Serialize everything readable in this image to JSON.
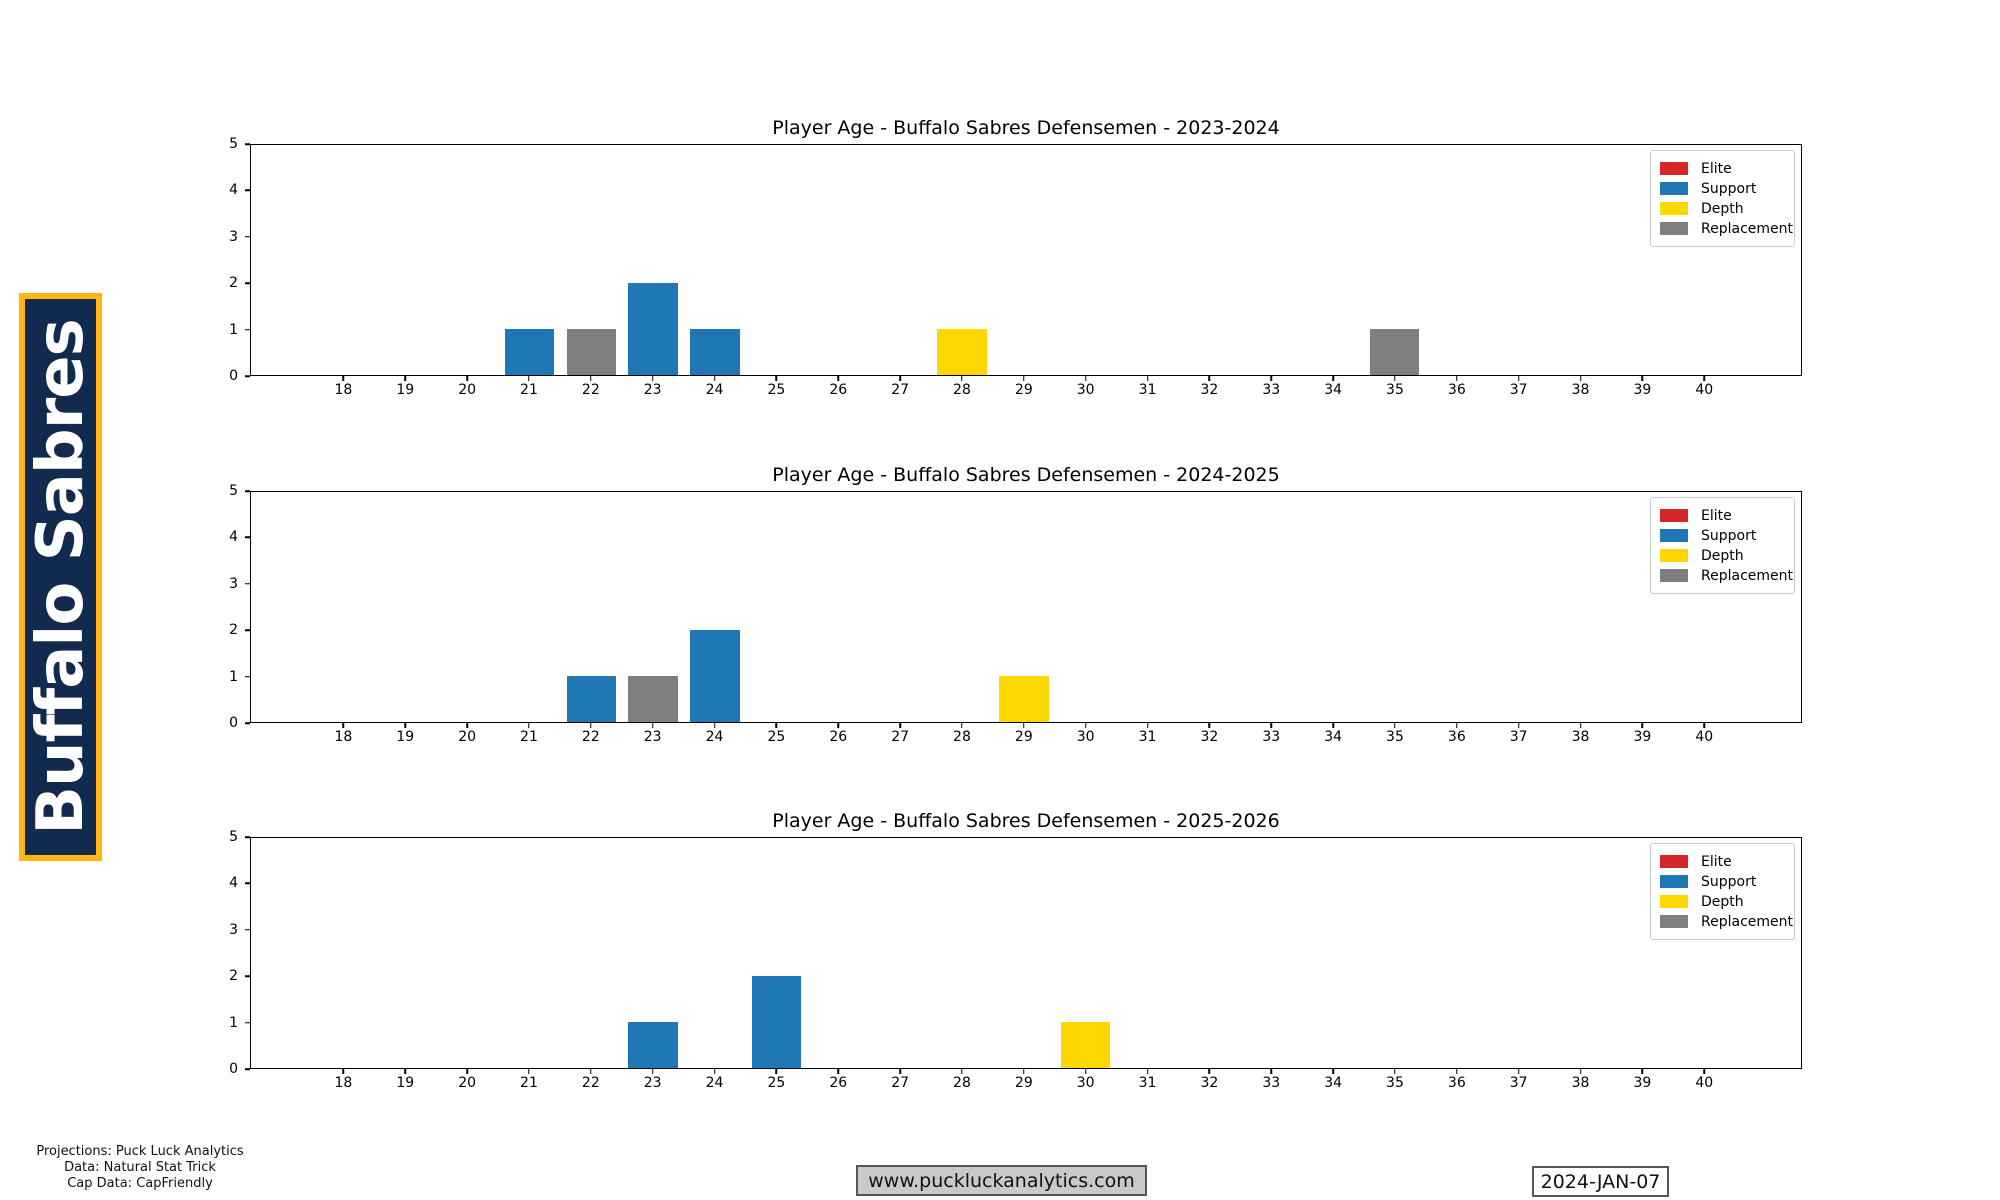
{
  "banner": {
    "team_name": "Buffalo Sabres",
    "background_color": "#122a4d",
    "border_color": "#ffb612",
    "text_color": "#ffffff"
  },
  "tier_colors": {
    "Elite": "#d62728",
    "Support": "#1f77b4",
    "Depth": "#ffd700",
    "Replacement": "#7f7f7f"
  },
  "legend": {
    "position": "upper right",
    "entries": [
      {
        "label": "Elite",
        "color": "#d62728"
      },
      {
        "label": "Support",
        "color": "#1f77b4"
      },
      {
        "label": "Depth",
        "color": "#ffd700"
      },
      {
        "label": "Replacement",
        "color": "#7f7f7f"
      }
    ]
  },
  "chart_data": [
    {
      "type": "bar",
      "title": "Player Age - Buffalo Sabres Defensemen - 2023-2024",
      "season": "2023-2024",
      "xlabel": "",
      "ylabel": "",
      "x_ticks": [
        18,
        19,
        20,
        21,
        22,
        23,
        24,
        25,
        26,
        27,
        28,
        29,
        30,
        31,
        32,
        33,
        34,
        35,
        36,
        37,
        38,
        39,
        40
      ],
      "y_ticks": [
        0,
        1,
        2,
        3,
        4,
        5
      ],
      "xlim": [
        16.49,
        41.58
      ],
      "ylim": [
        0,
        5
      ],
      "bar_width": 0.8,
      "grid": false,
      "bars": [
        {
          "age": 21,
          "count": 1,
          "tier": "Support"
        },
        {
          "age": 22,
          "count": 1,
          "tier": "Replacement"
        },
        {
          "age": 23,
          "count": 2,
          "tier": "Support"
        },
        {
          "age": 24,
          "count": 1,
          "tier": "Support"
        },
        {
          "age": 28,
          "count": 1,
          "tier": "Depth"
        },
        {
          "age": 35,
          "count": 1,
          "tier": "Replacement"
        }
      ]
    },
    {
      "type": "bar",
      "title": "Player Age - Buffalo Sabres Defensemen - 2024-2025",
      "season": "2024-2025",
      "xlabel": "",
      "ylabel": "",
      "x_ticks": [
        18,
        19,
        20,
        21,
        22,
        23,
        24,
        25,
        26,
        27,
        28,
        29,
        30,
        31,
        32,
        33,
        34,
        35,
        36,
        37,
        38,
        39,
        40
      ],
      "y_ticks": [
        0,
        1,
        2,
        3,
        4,
        5
      ],
      "xlim": [
        16.49,
        41.58
      ],
      "ylim": [
        0,
        5
      ],
      "bar_width": 0.8,
      "grid": false,
      "bars": [
        {
          "age": 22,
          "count": 1,
          "tier": "Support"
        },
        {
          "age": 23,
          "count": 1,
          "tier": "Replacement"
        },
        {
          "age": 24,
          "count": 2,
          "tier": "Support"
        },
        {
          "age": 29,
          "count": 1,
          "tier": "Depth"
        }
      ]
    },
    {
      "type": "bar",
      "title": "Player Age - Buffalo Sabres Defensemen - 2025-2026",
      "season": "2025-2026",
      "xlabel": "",
      "ylabel": "",
      "x_ticks": [
        18,
        19,
        20,
        21,
        22,
        23,
        24,
        25,
        26,
        27,
        28,
        29,
        30,
        31,
        32,
        33,
        34,
        35,
        36,
        37,
        38,
        39,
        40
      ],
      "y_ticks": [
        0,
        1,
        2,
        3,
        4,
        5
      ],
      "xlim": [
        16.49,
        41.58
      ],
      "ylim": [
        0,
        5
      ],
      "bar_width": 0.8,
      "grid": false,
      "bars": [
        {
          "age": 23,
          "count": 1,
          "tier": "Support"
        },
        {
          "age": 25,
          "count": 2,
          "tier": "Support"
        },
        {
          "age": 30,
          "count": 1,
          "tier": "Depth"
        }
      ]
    }
  ],
  "footer": {
    "credits": [
      "Projections: Puck Luck Analytics",
      "Data: Natural Stat Trick",
      "Cap Data: CapFriendly"
    ],
    "website": "www.puckluckanalytics.com",
    "date": "2024-JAN-07"
  }
}
